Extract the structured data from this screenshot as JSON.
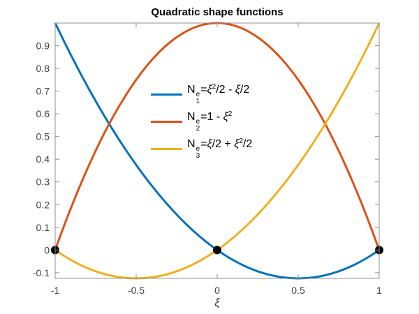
{
  "title": "Quadratic shape functions",
  "xlabel": "ξ",
  "axes": {
    "xlim": [
      -1,
      1
    ],
    "ylim": [
      -0.125,
      1
    ],
    "xticks": [
      -1,
      -0.5,
      0,
      0.5,
      1
    ],
    "xtick_labels": [
      "-1",
      "-0.5",
      "0",
      "0.5",
      "1"
    ],
    "yticks": [
      -0.1,
      0,
      0.1,
      0.2,
      0.3,
      0.4,
      0.5,
      0.6,
      0.7,
      0.8,
      0.9
    ],
    "ytick_labels": [
      "-0.1",
      "0",
      "0.1",
      "0.2",
      "0.3",
      "0.4",
      "0.5",
      "0.6",
      "0.7",
      "0.8",
      "0.9"
    ],
    "axis_color": "#8f8f8f",
    "tick_label_color": "#404040",
    "grid": false,
    "box": true
  },
  "chart_data": {
    "type": "line",
    "title": "Quadratic shape functions",
    "xlabel": "ξ",
    "ylabel": "",
    "xlim": [
      -1,
      1
    ],
    "ylim": [
      -0.125,
      1
    ],
    "legend_position": "upper-center, no box",
    "x": [
      -1,
      -0.9,
      -0.8,
      -0.7,
      -0.6,
      -0.5,
      -0.4,
      -0.3,
      -0.2,
      -0.1,
      0,
      0.1,
      0.2,
      0.3,
      0.4,
      0.5,
      0.6,
      0.7,
      0.8,
      0.9,
      1
    ],
    "series": [
      {
        "id": "N1",
        "name": "N1^e = ξ^2/2 - ξ/2",
        "color": "#0072BD",
        "values": [
          1,
          0.855,
          0.72,
          0.595,
          0.48,
          0.375,
          0.28,
          0.195,
          0.12,
          0.055,
          0,
          -0.045,
          -0.08,
          -0.105,
          -0.12,
          -0.125,
          -0.12,
          -0.105,
          -0.08,
          -0.045,
          0
        ]
      },
      {
        "id": "N2",
        "name": "N2^e = 1 - ξ^2",
        "color": "#D95319",
        "values": [
          0,
          0.19,
          0.36,
          0.51,
          0.64,
          0.75,
          0.84,
          0.91,
          0.96,
          0.99,
          1,
          0.99,
          0.96,
          0.91,
          0.84,
          0.75,
          0.64,
          0.51,
          0.36,
          0.19,
          0
        ]
      },
      {
        "id": "N3",
        "name": "N3^e = ξ/2 + ξ^2/2",
        "color": "#EDB120",
        "values": [
          0,
          -0.045,
          -0.08,
          -0.105,
          -0.12,
          -0.125,
          -0.12,
          -0.105,
          -0.08,
          -0.045,
          0,
          0.055,
          0.12,
          0.195,
          0.28,
          0.375,
          0.48,
          0.595,
          0.72,
          0.855,
          1
        ]
      }
    ],
    "node_markers": {
      "x": [
        -1,
        0,
        1
      ],
      "y": [
        0,
        0,
        0
      ],
      "color": "#000000",
      "shape": "filled-circle"
    }
  },
  "legend": {
    "entries": [
      {
        "id": "N1",
        "color": "#0072BD",
        "base": "N",
        "sup": "e",
        "sub": "1",
        "tokens": [
          {
            "t": "="
          },
          {
            "t": "ξ",
            "style": "italic"
          },
          {
            "t": "2",
            "style": "sup"
          },
          {
            "t": "/2 - "
          },
          {
            "t": "ξ",
            "style": "italic"
          },
          {
            "t": "/2"
          }
        ]
      },
      {
        "id": "N2",
        "color": "#D95319",
        "base": "N",
        "sup": "e",
        "sub": "2",
        "tokens": [
          {
            "t": "=1 - "
          },
          {
            "t": "ξ",
            "style": "italic"
          },
          {
            "t": "2",
            "style": "sup"
          }
        ]
      },
      {
        "id": "N3",
        "color": "#EDB120",
        "base": "N",
        "sup": "e",
        "sub": "3",
        "tokens": [
          {
            "t": "="
          },
          {
            "t": "ξ",
            "style": "italic"
          },
          {
            "t": "/2 + "
          },
          {
            "t": "ξ",
            "style": "italic"
          },
          {
            "t": "2",
            "style": "sup"
          },
          {
            "t": "/2"
          }
        ]
      }
    ]
  }
}
